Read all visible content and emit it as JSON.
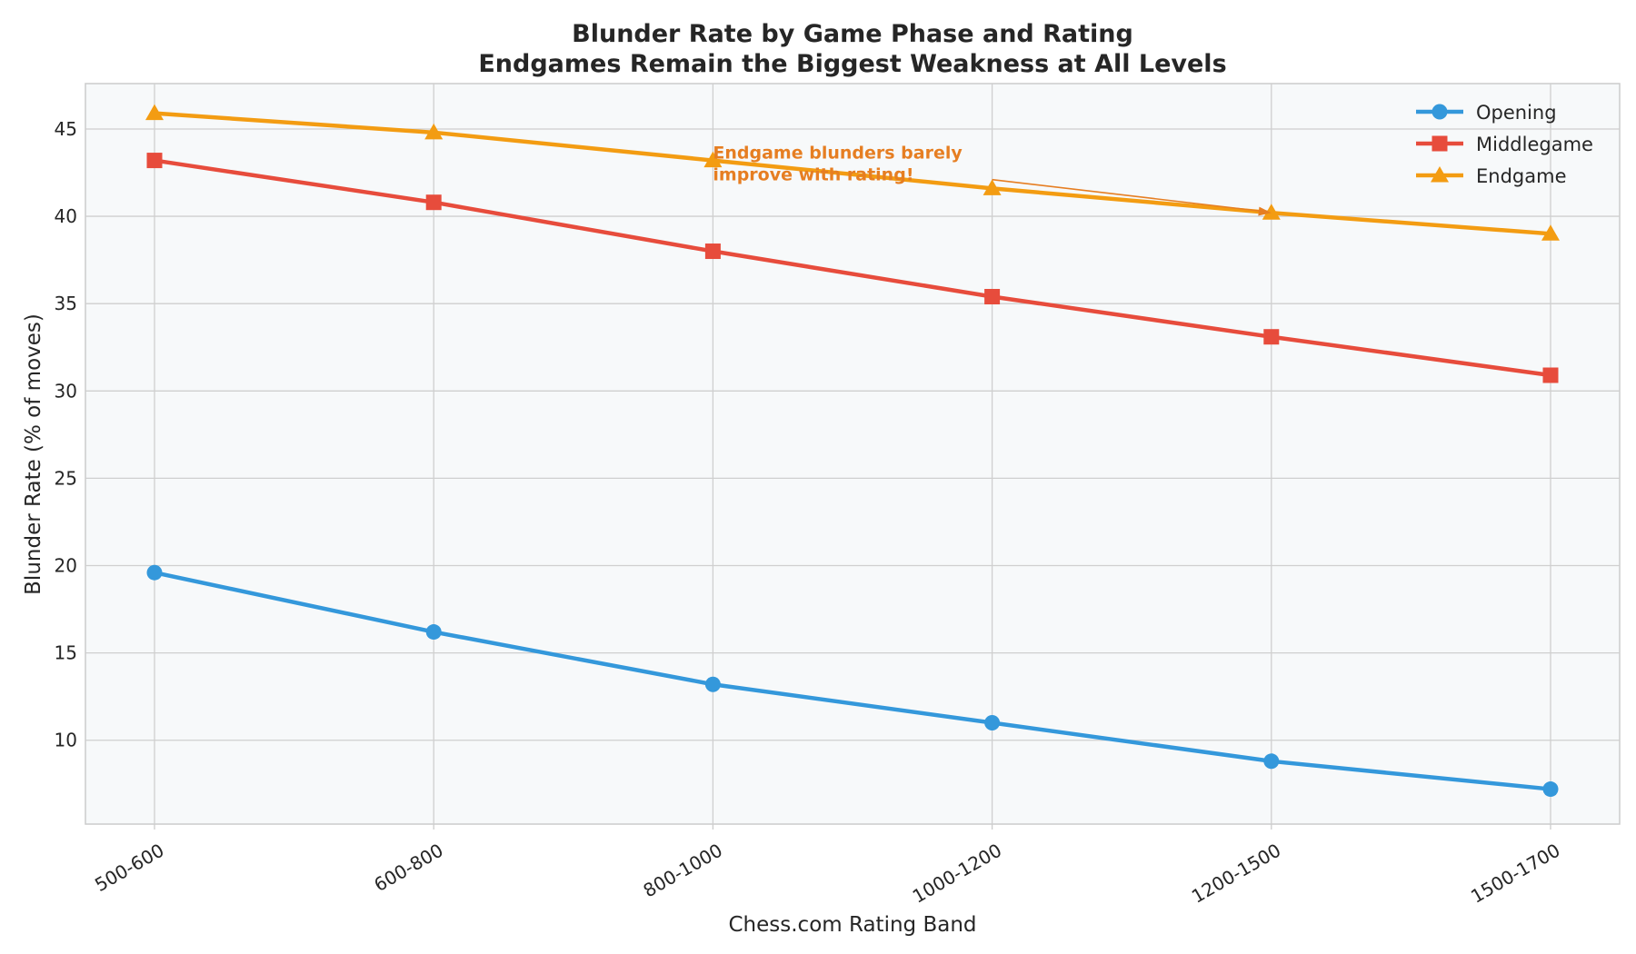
{
  "chart_data": {
    "type": "line",
    "title": "Blunder Rate by Game Phase and Rating",
    "subtitle": "Endgames Remain the Biggest Weakness at All Levels",
    "xlabel": "Chess.com Rating Band",
    "ylabel": "Blunder Rate (% of moves)",
    "categories": [
      "500-600",
      "600-800",
      "800-1000",
      "1000-1200",
      "1200-1500",
      "1500-1700"
    ],
    "ylim": [
      5.2,
      47.6
    ],
    "yticks": [
      10,
      15,
      20,
      25,
      30,
      35,
      40,
      45
    ],
    "grid": true,
    "legend_position": "top-right",
    "series": [
      {
        "name": "Opening",
        "values": [
          19.6,
          16.2,
          13.2,
          11.0,
          8.8,
          7.2
        ],
        "color": "#3498db",
        "marker": "circle"
      },
      {
        "name": "Middlegame",
        "values": [
          43.2,
          40.8,
          38.0,
          35.4,
          33.1,
          30.9
        ],
        "color": "#e74c3c",
        "marker": "square"
      },
      {
        "name": "Endgame",
        "values": [
          45.9,
          44.8,
          43.2,
          41.6,
          40.2,
          39.0
        ],
        "color": "#f39c12",
        "marker": "triangle"
      }
    ],
    "annotation": {
      "lines": [
        "Endgame blunders barely",
        "improve with rating!"
      ],
      "color": "#e67e22",
      "text_at": {
        "category_index": 2,
        "value": 43.0
      },
      "arrow_from": {
        "category_index": 3,
        "value": 42.1
      },
      "arrow_to": {
        "category_index": 4,
        "value": 40.2
      }
    }
  }
}
